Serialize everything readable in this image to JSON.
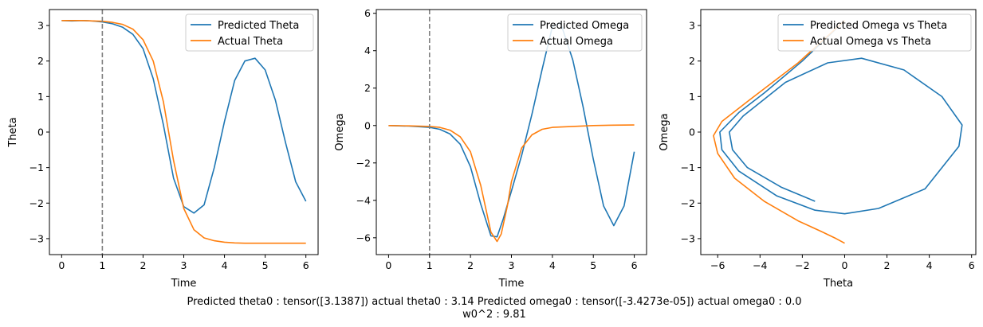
{
  "caption": {
    "line1": "Predicted theta0 : tensor([3.1387]) actual theta0 : 3.14 Predicted omega0 : tensor([-3.4273e-05]) actual omega0 : 0.0",
    "line2": "w0^2 : 9.81"
  },
  "colors": {
    "blue": "#1f77b4",
    "orange": "#ff7f0e",
    "vline": "#808080"
  },
  "chart_data": [
    {
      "type": "line",
      "title": "",
      "xlabel": "Time",
      "ylabel": "Theta",
      "xlim": [
        -0.3,
        6.3
      ],
      "ylim": [
        -3.45,
        3.45
      ],
      "xticks": [
        0,
        1,
        2,
        3,
        4,
        5,
        6
      ],
      "xtick_labels": [
        "0",
        "1",
        "2",
        "3",
        "4",
        "5",
        "6"
      ],
      "yticks": [
        -3,
        -2,
        -1,
        0,
        1,
        2,
        3
      ],
      "ytick_labels": [
        "−3",
        "−2",
        "−1",
        "0",
        "1",
        "2",
        "3"
      ],
      "vline": 1,
      "legend_position": "upper right",
      "grid": false,
      "series": [
        {
          "name": "Predicted Theta",
          "color": "#1f77b4",
          "x": [
            0,
            0.25,
            0.5,
            0.75,
            1.0,
            1.25,
            1.5,
            1.75,
            2.0,
            2.25,
            2.5,
            2.75,
            3.0,
            3.25,
            3.5,
            3.75,
            4.0,
            4.25,
            4.5,
            4.75,
            5.0,
            5.25,
            5.5,
            5.75,
            6.0
          ],
          "y": [
            3.14,
            3.13,
            3.14,
            3.13,
            3.1,
            3.05,
            2.95,
            2.75,
            2.35,
            1.5,
            0.2,
            -1.3,
            -2.1,
            -2.28,
            -2.05,
            -1.0,
            0.3,
            1.45,
            2.0,
            2.08,
            1.75,
            0.9,
            -0.3,
            -1.4,
            -1.95
          ]
        },
        {
          "name": "Actual Theta",
          "color": "#ff7f0e",
          "x": [
            0,
            0.25,
            0.5,
            0.75,
            1.0,
            1.25,
            1.5,
            1.75,
            2.0,
            2.25,
            2.5,
            2.75,
            3.0,
            3.25,
            3.5,
            3.75,
            4.0,
            4.25,
            4.5,
            4.75,
            5.0,
            5.25,
            5.5,
            5.75,
            6.0
          ],
          "y": [
            3.14,
            3.14,
            3.14,
            3.13,
            3.12,
            3.09,
            3.03,
            2.9,
            2.6,
            2.0,
            0.85,
            -0.8,
            -2.15,
            -2.75,
            -2.98,
            -3.06,
            -3.1,
            -3.12,
            -3.13,
            -3.13,
            -3.13,
            -3.13,
            -3.13,
            -3.13,
            -3.13
          ]
        }
      ]
    },
    {
      "type": "line",
      "title": "",
      "xlabel": "Time",
      "ylabel": "Omega",
      "xlim": [
        -0.3,
        6.3
      ],
      "ylim": [
        -6.9,
        6.2
      ],
      "xticks": [
        0,
        1,
        2,
        3,
        4,
        5,
        6
      ],
      "xtick_labels": [
        "0",
        "1",
        "2",
        "3",
        "4",
        "5",
        "6"
      ],
      "yticks": [
        -6,
        -4,
        -2,
        0,
        2,
        4,
        6
      ],
      "ytick_labels": [
        "−6",
        "−4",
        "−2",
        "0",
        "2",
        "4",
        "6"
      ],
      "vline": 1,
      "legend_position": "upper right",
      "grid": false,
      "series": [
        {
          "name": "Predicted Omega",
          "color": "#1f77b4",
          "x": [
            0,
            0.5,
            1.0,
            1.25,
            1.5,
            1.75,
            2.0,
            2.25,
            2.5,
            2.65,
            2.8,
            3.0,
            3.25,
            3.5,
            3.75,
            4.0,
            4.2,
            4.5,
            4.75,
            5.0,
            5.25,
            5.5,
            5.75,
            6.0
          ],
          "y": [
            0.0,
            -0.03,
            -0.1,
            -0.2,
            -0.45,
            -1.0,
            -2.2,
            -4.2,
            -5.9,
            -5.95,
            -5.0,
            -3.5,
            -1.6,
            0.6,
            3.0,
            5.3,
            5.5,
            3.5,
            1.0,
            -1.8,
            -4.3,
            -5.35,
            -4.3,
            -1.4
          ]
        },
        {
          "name": "Actual Omega",
          "color": "#ff7f0e",
          "x": [
            0,
            0.5,
            1.0,
            1.25,
            1.5,
            1.75,
            2.0,
            2.25,
            2.5,
            2.65,
            2.75,
            2.9,
            3.0,
            3.25,
            3.5,
            3.75,
            4.0,
            4.5,
            5.0,
            5.5,
            6.0
          ],
          "y": [
            0.0,
            -0.02,
            -0.05,
            -0.1,
            -0.25,
            -0.6,
            -1.4,
            -3.2,
            -5.7,
            -6.2,
            -5.8,
            -4.3,
            -3.0,
            -1.2,
            -0.5,
            -0.2,
            -0.1,
            -0.05,
            0.0,
            0.02,
            0.03
          ]
        }
      ]
    },
    {
      "type": "line",
      "title": "",
      "xlabel": "Theta",
      "ylabel": "Omega",
      "xlim": [
        -6.8,
        6.2
      ],
      "ylim": [
        -3.45,
        3.45
      ],
      "xticks": [
        -6,
        -4,
        -2,
        0,
        2,
        4,
        6
      ],
      "xtick_labels": [
        "−6",
        "−4",
        "−2",
        "0",
        "2",
        "4",
        "6"
      ],
      "yticks": [
        -3,
        -2,
        -1,
        0,
        1,
        2,
        3
      ],
      "ytick_labels": [
        "−3",
        "−2",
        "−1",
        "0",
        "1",
        "2",
        "3"
      ],
      "legend_position": "upper right",
      "grid": false,
      "series": [
        {
          "name": "Predicted Omega vs Theta",
          "color": "#1f77b4",
          "x": [
            -0.0,
            -2.0,
            -3.8,
            -5.0,
            -5.9,
            -5.8,
            -5.0,
            -3.2,
            -1.4,
            0.0,
            1.6,
            3.8,
            5.4,
            5.55,
            4.6,
            2.8,
            0.8,
            -0.8,
            -2.8,
            -4.8,
            -5.45,
            -5.3,
            -4.6,
            -3.0,
            -1.4
          ],
          "y": [
            3.14,
            2.0,
            1.1,
            0.55,
            0.0,
            -0.5,
            -1.1,
            -1.8,
            -2.2,
            -2.3,
            -2.15,
            -1.6,
            -0.4,
            0.2,
            1.0,
            1.75,
            2.08,
            1.95,
            1.4,
            0.45,
            0.0,
            -0.5,
            -1.0,
            -1.55,
            -1.95
          ]
        },
        {
          "name": "Actual Omega vs Theta",
          "color": "#ff7f0e",
          "x": [
            -0.0,
            -2.2,
            -4.4,
            -5.8,
            -6.2,
            -6.0,
            -5.2,
            -3.8,
            -2.2,
            -1.1,
            -0.4,
            0.0
          ],
          "y": [
            3.14,
            1.95,
            0.95,
            0.3,
            -0.1,
            -0.6,
            -1.3,
            -1.95,
            -2.5,
            -2.8,
            -3.0,
            -3.13
          ]
        }
      ]
    }
  ]
}
